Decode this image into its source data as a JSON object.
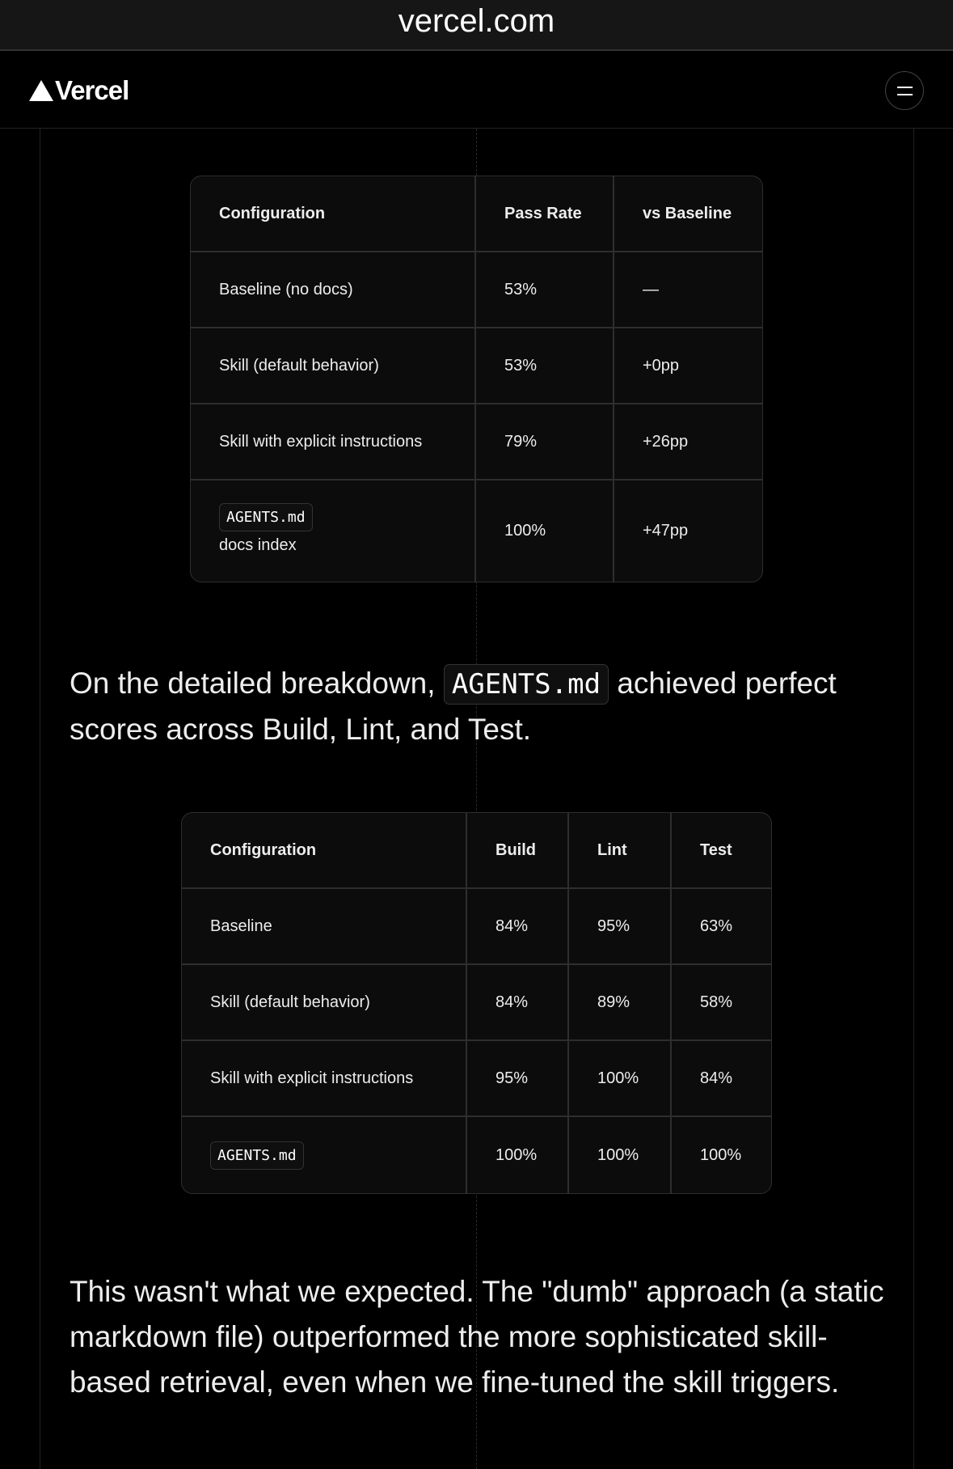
{
  "browser": {
    "url": "vercel.com"
  },
  "nav": {
    "logo": "Vercel",
    "menu_icon": "menu-icon"
  },
  "table1": {
    "headers": [
      "Configuration",
      "Pass Rate",
      "vs Baseline"
    ],
    "rows": [
      [
        "Baseline (no docs)",
        "53%",
        "—"
      ],
      [
        "Skill (default behavior)",
        "53%",
        "+0pp"
      ],
      [
        "Skill with explicit instructions",
        "79%",
        "+26pp"
      ]
    ],
    "last_row": {
      "code": "AGENTS.md",
      "label": "docs index",
      "pass_rate": "100%",
      "vs_baseline": "+47pp"
    }
  },
  "para1": {
    "before": "On the detailed breakdown, ",
    "code": "AGENTS.md",
    "after": " achieved perfect scores across Build, Lint, and Test."
  },
  "table2": {
    "headers": [
      "Configuration",
      "Build",
      "Lint",
      "Test"
    ],
    "rows": [
      [
        "Baseline",
        "84%",
        "95%",
        "63%"
      ],
      [
        "Skill (default behavior)",
        "84%",
        "89%",
        "58%"
      ],
      [
        "Skill with explicit instructions",
        "95%",
        "100%",
        "84%"
      ]
    ],
    "last_row": {
      "code": "AGENTS.md",
      "build": "100%",
      "lint": "100%",
      "test": "100%"
    }
  },
  "para2": {
    "text": "This wasn't what we expected. The \"dumb\" approach (a static markdown file) outperformed the more sophisticated skill-based retrieval, even when we fine-tuned the skill triggers."
  }
}
